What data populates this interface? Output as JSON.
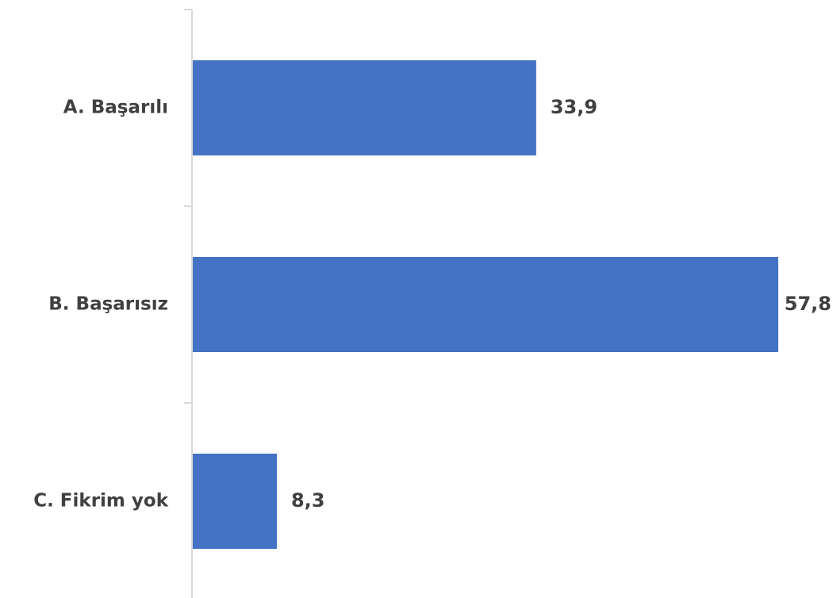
{
  "chart_data": {
    "type": "bar",
    "orientation": "horizontal",
    "categories": [
      "A. Başarılı",
      "B. Başarısız",
      "C. Fikrim yok"
    ],
    "values": [
      33.9,
      57.8,
      8.3
    ],
    "value_labels": [
      "33,9",
      "57,8",
      "8,3"
    ],
    "title": "",
    "xlabel": "",
    "ylabel": "",
    "xlim": [
      0,
      57.8
    ],
    "grid": false,
    "legend": "none"
  },
  "colors": {
    "bar": "#4472C4",
    "axis": "#d9d9d9",
    "text": "#404040"
  }
}
